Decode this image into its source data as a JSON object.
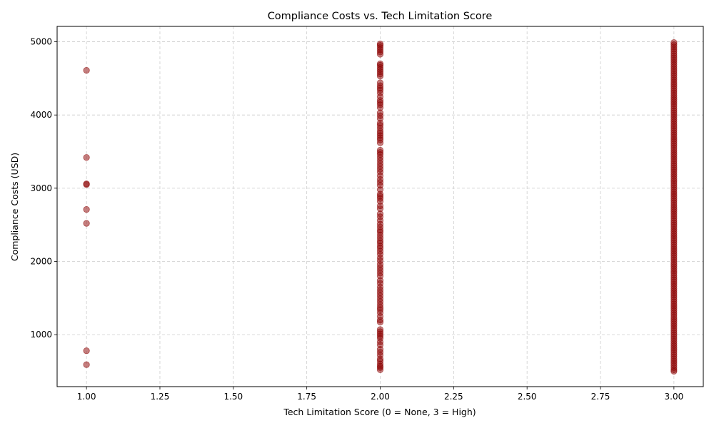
{
  "chart_data": {
    "type": "scatter",
    "title": "Compliance Costs vs. Tech Limitation Score",
    "xlabel": "Tech Limitation Score (0 = None, 3 = High)",
    "ylabel": "Compliance Costs (USD)",
    "xlim": [
      0.9,
      3.1
    ],
    "ylim": [
      290,
      5210
    ],
    "xticks": [
      1.0,
      1.25,
      1.5,
      1.75,
      2.0,
      2.25,
      2.5,
      2.75,
      3.0
    ],
    "xtick_labels": [
      "1.00",
      "1.25",
      "1.50",
      "1.75",
      "2.00",
      "2.25",
      "2.50",
      "2.75",
      "3.00"
    ],
    "yticks": [
      1000,
      2000,
      3000,
      4000,
      5000
    ],
    "ytick_labels": [
      "1000",
      "2000",
      "3000",
      "4000",
      "5000"
    ],
    "grid": true,
    "marker_color": "#8b0000",
    "marker_alpha": 0.5,
    "series": [
      {
        "points": [
          [
            1,
            4610
          ],
          [
            1,
            3420
          ],
          [
            1,
            3060
          ],
          [
            1,
            3050
          ],
          [
            1,
            2710
          ],
          [
            1,
            2520
          ],
          [
            1,
            780
          ],
          [
            1,
            590
          ],
          [
            2,
            4970
          ],
          [
            2,
            4950
          ],
          [
            2,
            4920
          ],
          [
            2,
            4890
          ],
          [
            2,
            4860
          ],
          [
            2,
            4830
          ],
          [
            2,
            4700
          ],
          [
            2,
            4680
          ],
          [
            2,
            4650
          ],
          [
            2,
            4620
          ],
          [
            2,
            4590
          ],
          [
            2,
            4560
          ],
          [
            2,
            4530
          ],
          [
            2,
            4440
          ],
          [
            2,
            4400
          ],
          [
            2,
            4370
          ],
          [
            2,
            4340
          ],
          [
            2,
            4300
          ],
          [
            2,
            4250
          ],
          [
            2,
            4200
          ],
          [
            2,
            4170
          ],
          [
            2,
            4140
          ],
          [
            2,
            4100
          ],
          [
            2,
            4030
          ],
          [
            2,
            3990
          ],
          [
            2,
            3950
          ],
          [
            2,
            3890
          ],
          [
            2,
            3860
          ],
          [
            2,
            3820
          ],
          [
            2,
            3780
          ],
          [
            2,
            3750
          ],
          [
            2,
            3720
          ],
          [
            2,
            3690
          ],
          [
            2,
            3660
          ],
          [
            2,
            3620
          ],
          [
            2,
            3520
          ],
          [
            2,
            3490
          ],
          [
            2,
            3460
          ],
          [
            2,
            3420
          ],
          [
            2,
            3380
          ],
          [
            2,
            3340
          ],
          [
            2,
            3300
          ],
          [
            2,
            3260
          ],
          [
            2,
            3220
          ],
          [
            2,
            3170
          ],
          [
            2,
            3120
          ],
          [
            2,
            3080
          ],
          [
            2,
            3040
          ],
          [
            2,
            2980
          ],
          [
            2,
            2920
          ],
          [
            2,
            2890
          ],
          [
            2,
            2860
          ],
          [
            2,
            2820
          ],
          [
            2,
            2760
          ],
          [
            2,
            2720
          ],
          [
            2,
            2650
          ],
          [
            2,
            2610
          ],
          [
            2,
            2560
          ],
          [
            2,
            2510
          ],
          [
            2,
            2470
          ],
          [
            2,
            2430
          ],
          [
            2,
            2400
          ],
          [
            2,
            2360
          ],
          [
            2,
            2320
          ],
          [
            2,
            2280
          ],
          [
            2,
            2250
          ],
          [
            2,
            2210
          ],
          [
            2,
            2180
          ],
          [
            2,
            2140
          ],
          [
            2,
            2100
          ],
          [
            2,
            2050
          ],
          [
            2,
            2010
          ],
          [
            2,
            1960
          ],
          [
            2,
            1920
          ],
          [
            2,
            1880
          ],
          [
            2,
            1840
          ],
          [
            2,
            1800
          ],
          [
            2,
            1740
          ],
          [
            2,
            1700
          ],
          [
            2,
            1650
          ],
          [
            2,
            1610
          ],
          [
            2,
            1570
          ],
          [
            2,
            1530
          ],
          [
            2,
            1490
          ],
          [
            2,
            1450
          ],
          [
            2,
            1410
          ],
          [
            2,
            1370
          ],
          [
            2,
            1340
          ],
          [
            2,
            1300
          ],
          [
            2,
            1250
          ],
          [
            2,
            1200
          ],
          [
            2,
            1170
          ],
          [
            2,
            1070
          ],
          [
            2,
            1040
          ],
          [
            2,
            1010
          ],
          [
            2,
            980
          ],
          [
            2,
            950
          ],
          [
            2,
            900
          ],
          [
            2,
            860
          ],
          [
            2,
            800
          ],
          [
            2,
            760
          ],
          [
            2,
            720
          ],
          [
            2,
            670
          ],
          [
            2,
            640
          ],
          [
            2,
            600
          ],
          [
            2,
            570
          ],
          [
            2,
            550
          ],
          [
            2,
            520
          ],
          [
            3,
            4990
          ],
          [
            3,
            4960
          ],
          [
            3,
            4930
          ],
          [
            3,
            4900
          ],
          [
            3,
            4870
          ],
          [
            3,
            4840
          ],
          [
            3,
            4810
          ],
          [
            3,
            4780
          ],
          [
            3,
            4750
          ],
          [
            3,
            4720
          ],
          [
            3,
            4690
          ],
          [
            3,
            4660
          ],
          [
            3,
            4630
          ],
          [
            3,
            4600
          ],
          [
            3,
            4570
          ],
          [
            3,
            4540
          ],
          [
            3,
            4510
          ],
          [
            3,
            4480
          ],
          [
            3,
            4450
          ],
          [
            3,
            4420
          ],
          [
            3,
            4390
          ],
          [
            3,
            4360
          ],
          [
            3,
            4330
          ],
          [
            3,
            4300
          ],
          [
            3,
            4270
          ],
          [
            3,
            4240
          ],
          [
            3,
            4210
          ],
          [
            3,
            4180
          ],
          [
            3,
            4150
          ],
          [
            3,
            4120
          ],
          [
            3,
            4090
          ],
          [
            3,
            4060
          ],
          [
            3,
            4030
          ],
          [
            3,
            4000
          ],
          [
            3,
            3970
          ],
          [
            3,
            3940
          ],
          [
            3,
            3910
          ],
          [
            3,
            3880
          ],
          [
            3,
            3850
          ],
          [
            3,
            3820
          ],
          [
            3,
            3790
          ],
          [
            3,
            3760
          ],
          [
            3,
            3730
          ],
          [
            3,
            3700
          ],
          [
            3,
            3670
          ],
          [
            3,
            3640
          ],
          [
            3,
            3610
          ],
          [
            3,
            3580
          ],
          [
            3,
            3550
          ],
          [
            3,
            3520
          ],
          [
            3,
            3490
          ],
          [
            3,
            3460
          ],
          [
            3,
            3430
          ],
          [
            3,
            3400
          ],
          [
            3,
            3370
          ],
          [
            3,
            3340
          ],
          [
            3,
            3310
          ],
          [
            3,
            3280
          ],
          [
            3,
            3250
          ],
          [
            3,
            3220
          ],
          [
            3,
            3190
          ],
          [
            3,
            3160
          ],
          [
            3,
            3130
          ],
          [
            3,
            3100
          ],
          [
            3,
            3070
          ],
          [
            3,
            3040
          ],
          [
            3,
            3010
          ],
          [
            3,
            2980
          ],
          [
            3,
            2950
          ],
          [
            3,
            2920
          ],
          [
            3,
            2890
          ],
          [
            3,
            2860
          ],
          [
            3,
            2830
          ],
          [
            3,
            2800
          ],
          [
            3,
            2770
          ],
          [
            3,
            2740
          ],
          [
            3,
            2710
          ],
          [
            3,
            2680
          ],
          [
            3,
            2650
          ],
          [
            3,
            2620
          ],
          [
            3,
            2590
          ],
          [
            3,
            2560
          ],
          [
            3,
            2530
          ],
          [
            3,
            2500
          ],
          [
            3,
            2470
          ],
          [
            3,
            2440
          ],
          [
            3,
            2410
          ],
          [
            3,
            2380
          ],
          [
            3,
            2350
          ],
          [
            3,
            2320
          ],
          [
            3,
            2290
          ],
          [
            3,
            2260
          ],
          [
            3,
            2230
          ],
          [
            3,
            2200
          ],
          [
            3,
            2170
          ],
          [
            3,
            2140
          ],
          [
            3,
            2110
          ],
          [
            3,
            2080
          ],
          [
            3,
            2050
          ],
          [
            3,
            2020
          ],
          [
            3,
            1990
          ],
          [
            3,
            1960
          ],
          [
            3,
            1930
          ],
          [
            3,
            1900
          ],
          [
            3,
            1870
          ],
          [
            3,
            1840
          ],
          [
            3,
            1810
          ],
          [
            3,
            1780
          ],
          [
            3,
            1750
          ],
          [
            3,
            1720
          ],
          [
            3,
            1690
          ],
          [
            3,
            1660
          ],
          [
            3,
            1630
          ],
          [
            3,
            1600
          ],
          [
            3,
            1570
          ],
          [
            3,
            1540
          ],
          [
            3,
            1510
          ],
          [
            3,
            1480
          ],
          [
            3,
            1450
          ],
          [
            3,
            1420
          ],
          [
            3,
            1390
          ],
          [
            3,
            1360
          ],
          [
            3,
            1330
          ],
          [
            3,
            1300
          ],
          [
            3,
            1270
          ],
          [
            3,
            1240
          ],
          [
            3,
            1210
          ],
          [
            3,
            1180
          ],
          [
            3,
            1150
          ],
          [
            3,
            1120
          ],
          [
            3,
            1090
          ],
          [
            3,
            1060
          ],
          [
            3,
            1030
          ],
          [
            3,
            1000
          ],
          [
            3,
            970
          ],
          [
            3,
            940
          ],
          [
            3,
            910
          ],
          [
            3,
            880
          ],
          [
            3,
            850
          ],
          [
            3,
            820
          ],
          [
            3,
            790
          ],
          [
            3,
            760
          ],
          [
            3,
            730
          ],
          [
            3,
            700
          ],
          [
            3,
            670
          ],
          [
            3,
            640
          ],
          [
            3,
            610
          ],
          [
            3,
            580
          ],
          [
            3,
            550
          ],
          [
            3,
            520
          ],
          [
            3,
            500
          ]
        ]
      }
    ]
  }
}
